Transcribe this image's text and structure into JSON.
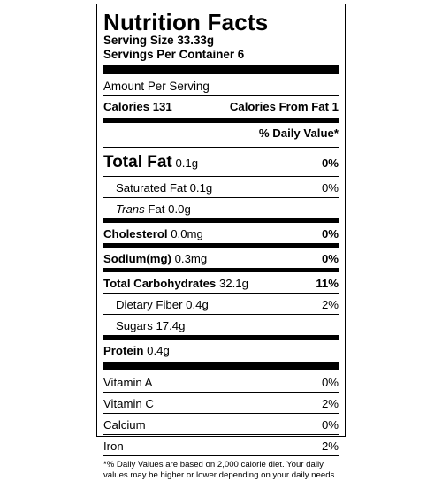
{
  "title": "Nutrition Facts",
  "serving_size": "Serving Size 33.33g",
  "servings_per_container": "Servings Per Container 6",
  "amount_per_serving": "Amount Per Serving",
  "calories": "Calories 131",
  "calories_from_fat": "Calories From Fat 1",
  "daily_value_header": "% Daily Value*",
  "nutrients": [
    {
      "label": "Total Fat",
      "amount": "0.1g",
      "dv": "0%"
    },
    {
      "label": "Saturated Fat",
      "amount": "0.1g",
      "dv": "0%"
    },
    {
      "label_italic": "Trans",
      "label": "Fat",
      "amount": "0.0g",
      "dv": ""
    },
    {
      "label": "Cholesterol",
      "amount": "0.0mg",
      "dv": "0%"
    },
    {
      "label": "Sodium(mg)",
      "amount": "0.3mg",
      "dv": "0%"
    },
    {
      "label": "Total Carbohydrates",
      "amount": "32.1g",
      "dv": "11%"
    },
    {
      "label": "Dietary Fiber",
      "amount": "0.4g",
      "dv": "2%"
    },
    {
      "label": "Sugars",
      "amount": "17.4g",
      "dv": ""
    },
    {
      "label": "Protein",
      "amount": "0.4g",
      "dv": ""
    }
  ],
  "vitamins": [
    {
      "label": "Vitamin A",
      "dv": "0%"
    },
    {
      "label": "Vitamin C",
      "dv": "2%"
    },
    {
      "label": "Calcium",
      "dv": "0%"
    },
    {
      "label": "Iron",
      "dv": "2%"
    }
  ],
  "footnote": "*% Daily Values are based on 2,000 calorie diet. Your daily values may be higher or lower depending on your daily needs."
}
